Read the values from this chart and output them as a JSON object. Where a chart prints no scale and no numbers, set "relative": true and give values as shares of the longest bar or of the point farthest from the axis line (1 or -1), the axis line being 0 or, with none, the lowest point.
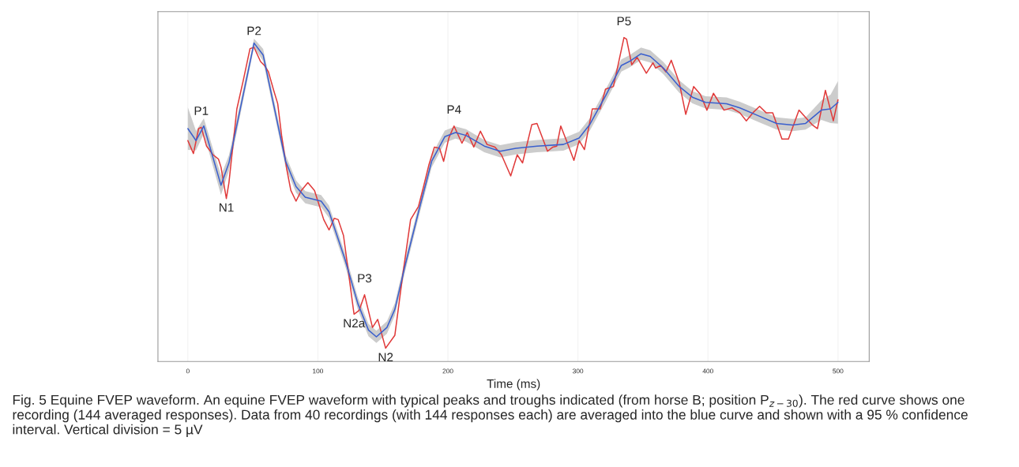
{
  "chart_data": {
    "type": "line",
    "relative": true,
    "xlabel": "Time (ms)",
    "xlim": [
      -23,
      524
    ],
    "xticks": [
      0,
      100,
      200,
      300,
      400,
      500
    ],
    "grid": "x",
    "legend": false,
    "marker": "none",
    "line_style": "solid",
    "series": [
      {
        "color": "#e03a3a",
        "x": [
          0,
          4.3,
          8.3,
          10.3,
          14.4,
          19.4,
          23.5,
          25.5,
          29.6,
          31.6,
          37.7,
          42.7,
          47.8,
          50.9,
          55.9,
          58.9,
          62.0,
          66.0,
          69.1,
          72.1,
          76.1,
          79.2,
          83.2,
          87.3,
          92.3,
          97.4,
          104.5,
          108.6,
          112.6,
          115.6,
          119.7,
          122.7,
          127.8,
          131.8,
          135.9,
          142.0,
          146.0,
          152.1,
          159.2,
          165.3,
          171.3,
          177.4,
          181.5,
          185.5,
          189.6,
          193.6,
          196.7,
          200.7,
          204.7,
          210.8,
          214.9,
          219.9,
          225.0,
          230.1,
          236.2,
          241.2,
          248.3,
          253.3,
          257.4,
          264.5,
          268.5,
          276.6,
          280.7,
          283.7,
          286.8,
          292.8,
          296.9,
          300.9,
          305.0,
          311.1,
          317.1,
          321.2,
          327.3,
          335.4,
          337.4,
          341.4,
          345.5,
          352.6,
          357.7,
          359.7,
          363.7,
          367.7,
          371.8,
          377.9,
          382.9,
          389.0,
          394.1,
          399.2,
          404.2,
          412.3,
          418.4,
          424.5,
          429.5,
          434.6,
          439.7,
          444.7,
          449.8,
          456.9,
          461.9,
          470.0,
          480.1,
          484.2,
          490.3,
          496.4,
          500
        ],
        "values": [
          0.682,
          0.642,
          0.719,
          0.723,
          0.665,
          0.638,
          0.625,
          0.6,
          0.503,
          0.552,
          0.78,
          0.869,
          0.966,
          0.97,
          0.926,
          0.914,
          0.894,
          0.837,
          0.796,
          0.698,
          0.593,
          0.528,
          0.495,
          0.528,
          0.552,
          0.528,
          0.438,
          0.406,
          0.442,
          0.438,
          0.389,
          0.3,
          0.146,
          0.158,
          0.206,
          0.105,
          0.13,
          0.041,
          0.081,
          0.268,
          0.438,
          0.479,
          0.544,
          0.609,
          0.662,
          0.658,
          0.618,
          0.69,
          0.727,
          0.674,
          0.707,
          0.662,
          0.711,
          0.67,
          0.662,
          0.638,
          0.573,
          0.638,
          0.613,
          0.731,
          0.735,
          0.649,
          0.662,
          0.665,
          0.727,
          0.665,
          0.621,
          0.682,
          0.654,
          0.78,
          0.78,
          0.841,
          0.849,
          1,
          0.995,
          0.916,
          0.939,
          0.89,
          0.922,
          0.906,
          0.914,
          0.894,
          0.93,
          0.861,
          0.763,
          0.849,
          0.825,
          0.776,
          0.828,
          0.776,
          0.783,
          0.768,
          0.743,
          0.768,
          0.788,
          0.768,
          0.768,
          0.687,
          0.687,
          0.776,
          0.731,
          0.719,
          0.837,
          0.743,
          0.808
        ]
      },
      {
        "color": "#3a5fcd",
        "x": [
          0,
          6.3,
          12.3,
          25.5,
          31.6,
          50.9,
          57.9,
          75.2,
          83.2,
          90.3,
          102.5,
          108.6,
          120.7,
          130.8,
          138.9,
          145.0,
          153.1,
          159.2,
          167.3,
          177.4,
          187.5,
          197.6,
          205.8,
          213.9,
          228.0,
          240.2,
          252.3,
          268.5,
          288.8,
          300.9,
          309.0,
          321.2,
          333.4,
          339.4,
          348.5,
          355.6,
          365.7,
          377.9,
          388.0,
          398.1,
          414.3,
          424.5,
          438.6,
          452.8,
          465.0,
          475.1,
          487.2,
          494.3,
          500
        ],
        "values": [
          0.719,
          0.682,
          0.727,
          0.544,
          0.613,
          0.983,
          0.946,
          0.618,
          0.54,
          0.507,
          0.495,
          0.462,
          0.317,
          0.178,
          0.097,
          0.076,
          0.105,
          0.161,
          0.3,
          0.462,
          0.618,
          0.694,
          0.707,
          0.698,
          0.665,
          0.649,
          0.658,
          0.665,
          0.67,
          0.69,
          0.731,
          0.82,
          0.914,
          0.926,
          0.95,
          0.942,
          0.906,
          0.849,
          0.816,
          0.8,
          0.796,
          0.783,
          0.759,
          0.735,
          0.73,
          0.735,
          0.776,
          0.78,
          0.8
        ],
        "lower": [
          0.653,
          0.652,
          0.703,
          0.514,
          0.589,
          0.969,
          0.927,
          0.599,
          0.521,
          0.488,
          0.476,
          0.443,
          0.298,
          0.159,
          0.078,
          0.057,
          0.086,
          0.142,
          0.281,
          0.443,
          0.599,
          0.675,
          0.688,
          0.679,
          0.646,
          0.63,
          0.639,
          0.646,
          0.651,
          0.671,
          0.712,
          0.801,
          0.895,
          0.907,
          0.931,
          0.923,
          0.887,
          0.83,
          0.797,
          0.781,
          0.777,
          0.764,
          0.74,
          0.716,
          0.711,
          0.716,
          0.746,
          0.736,
          0.734
        ],
        "upper": [
          0.785,
          0.712,
          0.751,
          0.574,
          0.637,
          0.997,
          0.965,
          0.637,
          0.559,
          0.526,
          0.514,
          0.481,
          0.336,
          0.197,
          0.116,
          0.095,
          0.124,
          0.18,
          0.319,
          0.481,
          0.637,
          0.713,
          0.726,
          0.717,
          0.684,
          0.668,
          0.677,
          0.684,
          0.689,
          0.709,
          0.75,
          0.839,
          0.933,
          0.945,
          0.969,
          0.961,
          0.925,
          0.868,
          0.835,
          0.819,
          0.815,
          0.802,
          0.778,
          0.754,
          0.749,
          0.754,
          0.806,
          0.824,
          0.866
        ]
      }
    ],
    "annotations": [
      {
        "text": "P1",
        "x": 10.3,
        "y": 0.723
      },
      {
        "text": "P2",
        "x": 50.9,
        "y": 0.97
      },
      {
        "text": "N1",
        "x": 29.6,
        "y": 0.503
      },
      {
        "text": "P3",
        "x": 135.9,
        "y": 0.206
      },
      {
        "text": "N2a",
        "x": 127.8,
        "y": 0.146
      },
      {
        "text": "N2",
        "x": 152.1,
        "y": 0.041
      },
      {
        "text": "P4",
        "x": 204.7,
        "y": 0.727
      },
      {
        "text": "P5",
        "x": 335.4,
        "y": 1
      },
      "Fig. 5 Equine FVEP waveform. An equine FVEP waveform with typical peaks and troughs indicated (from horse B; position P$_{z−30}$). The red curve shows one recording (144 averaged responses). Data from 40 recordings (with 144 responses each) are averaged into the blue curve and shown with a 95 % confidence interval. Vertical division = 5 µV"
    ]
  }
}
